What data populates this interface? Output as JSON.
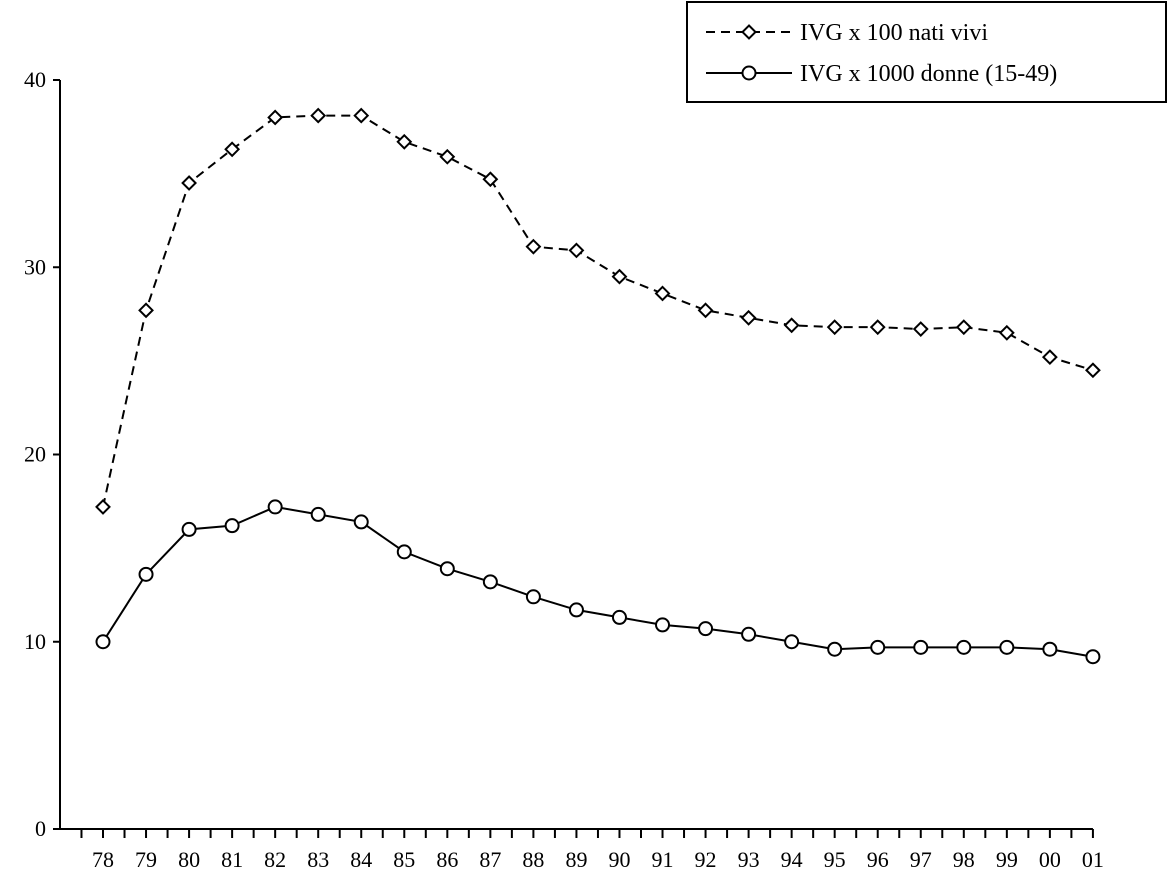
{
  "chart_data": {
    "type": "line",
    "title": "",
    "xlabel": "",
    "ylabel": "",
    "categories": [
      "78",
      "79",
      "80",
      "81",
      "82",
      "83",
      "84",
      "85",
      "86",
      "87",
      "88",
      "89",
      "90",
      "91",
      "92",
      "93",
      "94",
      "95",
      "96",
      "97",
      "98",
      "99",
      "00",
      "01"
    ],
    "ylim": [
      0,
      40
    ],
    "yticks": [
      0,
      10,
      20,
      30,
      40
    ],
    "grid": false,
    "legend": "top-right",
    "series": [
      {
        "name": "IVG x 100 nati vivi",
        "style": "dashed",
        "marker": "diamond",
        "color": "#000000",
        "values": [
          17.2,
          27.7,
          34.5,
          36.3,
          38.0,
          38.1,
          38.1,
          36.7,
          35.9,
          34.7,
          31.1,
          30.9,
          29.5,
          28.6,
          27.7,
          27.3,
          26.9,
          26.8,
          26.8,
          26.7,
          26.8,
          26.5,
          25.2,
          24.5
        ]
      },
      {
        "name": "IVG x 1000 donne (15-49)",
        "style": "solid",
        "marker": "circle",
        "color": "#000000",
        "values": [
          10.0,
          13.6,
          16.0,
          16.2,
          17.2,
          16.8,
          16.4,
          14.8,
          13.9,
          13.2,
          12.4,
          11.7,
          11.3,
          10.9,
          10.7,
          10.4,
          10.0,
          9.6,
          9.7,
          9.7,
          9.7,
          9.7,
          9.6,
          9.2
        ]
      }
    ]
  }
}
